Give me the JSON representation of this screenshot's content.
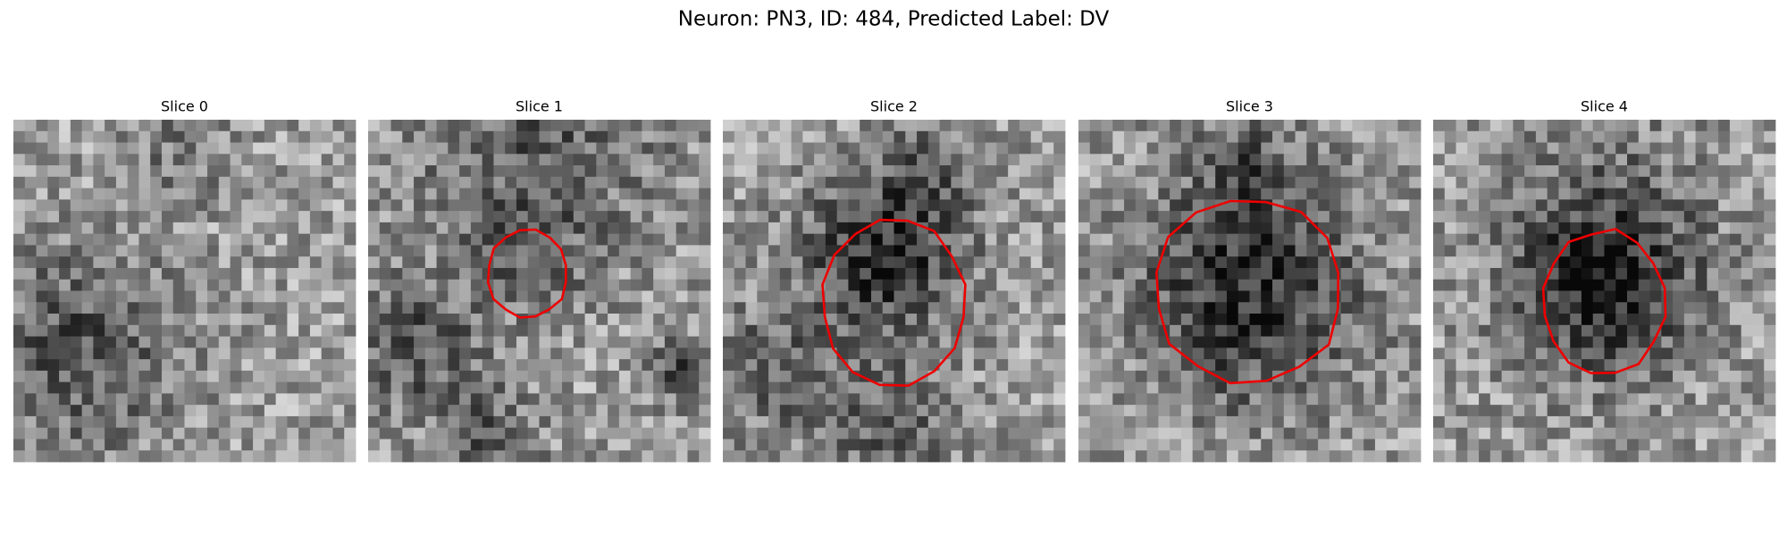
{
  "title": "Neuron: PN3, ID: 484, Predicted Label: DV",
  "panels": [
    {
      "title": "Slice 0"
    },
    {
      "title": "Slice 1"
    },
    {
      "title": "Slice 2"
    },
    {
      "title": "Slice 3"
    },
    {
      "title": "Slice 4"
    }
  ]
}
